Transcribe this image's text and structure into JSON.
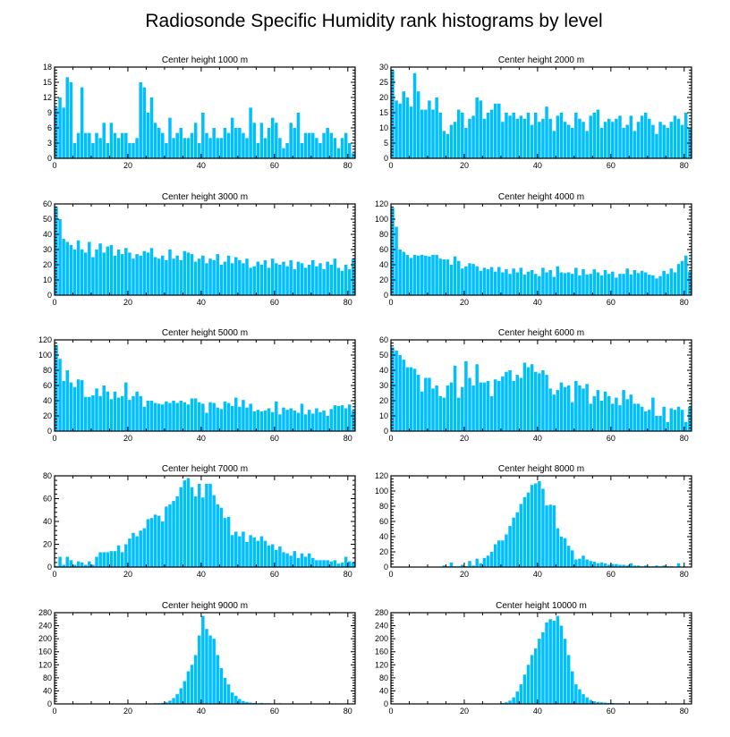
{
  "title": "Radiosonde Specific Humidity rank histograms by level",
  "chart_data": [
    {
      "type": "bar",
      "title": "Center height 1000 m",
      "xlim": [
        0,
        82
      ],
      "ylim": [
        0,
        18
      ],
      "xticks": [
        0,
        20,
        40,
        60,
        80
      ],
      "yticks": [
        0,
        3,
        6,
        9,
        12,
        15,
        18
      ],
      "values": [
        10,
        12,
        10,
        16,
        15,
        3,
        5,
        14,
        5,
        5,
        3,
        5,
        4,
        7,
        3,
        7,
        5,
        4,
        5,
        5,
        3,
        3,
        4,
        15,
        14,
        9,
        12,
        7,
        6,
        5,
        3,
        8,
        4,
        5,
        6,
        4,
        4,
        5,
        7,
        3,
        9,
        5,
        4,
        6,
        4,
        4,
        6,
        5,
        8,
        6,
        6,
        5,
        4,
        10,
        7,
        3,
        7,
        4,
        6,
        8,
        7,
        4,
        2,
        3,
        7,
        6,
        9,
        3,
        5,
        5,
        5,
        4,
        3,
        5,
        6,
        5,
        4,
        2,
        4,
        5,
        3,
        1
      ]
    },
    {
      "type": "bar",
      "title": "Center height 2000 m",
      "xlim": [
        0,
        82
      ],
      "ylim": [
        0,
        30
      ],
      "xticks": [
        0,
        20,
        40,
        60,
        80
      ],
      "yticks": [
        0,
        5,
        10,
        15,
        20,
        25,
        30
      ],
      "values": [
        29,
        19,
        18,
        22,
        20,
        17,
        28,
        22,
        16,
        16,
        19,
        16,
        20,
        15,
        9,
        8,
        11,
        12,
        16,
        15,
        10,
        13,
        14,
        20,
        19,
        13,
        15,
        16,
        18,
        18,
        12,
        15,
        14,
        15,
        13,
        14,
        13,
        15,
        11,
        15,
        12,
        13,
        17,
        13,
        9,
        14,
        15,
        12,
        11,
        10,
        15,
        13,
        12,
        9,
        14,
        15,
        16,
        10,
        12,
        13,
        12,
        13,
        14,
        10,
        11,
        14,
        9,
        12,
        14,
        15,
        13,
        11,
        8,
        12,
        11,
        10,
        12,
        14,
        13,
        11,
        15,
        10
      ]
    },
    {
      "type": "bar",
      "title": "Center height 3000 m",
      "xlim": [
        0,
        82
      ],
      "ylim": [
        0,
        60
      ],
      "xticks": [
        0,
        20,
        40,
        60,
        80
      ],
      "yticks": [
        0,
        10,
        20,
        30,
        40,
        50,
        60
      ],
      "values": [
        58,
        50,
        37,
        35,
        33,
        30,
        36,
        30,
        28,
        35,
        25,
        30,
        34,
        28,
        32,
        33,
        26,
        30,
        27,
        31,
        28,
        24,
        27,
        26,
        29,
        28,
        31,
        25,
        24,
        26,
        23,
        30,
        24,
        26,
        23,
        29,
        28,
        27,
        22,
        24,
        26,
        21,
        24,
        23,
        27,
        20,
        22,
        26,
        21,
        25,
        23,
        21,
        24,
        18,
        19,
        22,
        20,
        23,
        18,
        24,
        21,
        20,
        22,
        19,
        23,
        17,
        22,
        21,
        18,
        20,
        23,
        19,
        21,
        17,
        22,
        20,
        24,
        18,
        16,
        20,
        17,
        24
      ]
    },
    {
      "type": "bar",
      "title": "Center height 4000 m",
      "xlim": [
        0,
        82
      ],
      "ylim": [
        0,
        120
      ],
      "xticks": [
        0,
        20,
        40,
        60,
        80
      ],
      "yticks": [
        0,
        20,
        40,
        60,
        80,
        100,
        120
      ],
      "values": [
        115,
        90,
        60,
        57,
        53,
        49,
        53,
        52,
        53,
        52,
        51,
        53,
        53,
        48,
        47,
        47,
        40,
        51,
        45,
        35,
        38,
        42,
        41,
        38,
        32,
        36,
        34,
        37,
        31,
        37,
        30,
        34,
        28,
        35,
        30,
        36,
        27,
        31,
        33,
        28,
        25,
        36,
        30,
        33,
        24,
        38,
        30,
        29,
        30,
        28,
        36,
        26,
        34,
        27,
        28,
        34,
        30,
        26,
        33,
        28,
        31,
        23,
        28,
        28,
        35,
        27,
        33,
        29,
        32,
        30,
        27,
        26,
        22,
        25,
        32,
        28,
        35,
        30,
        41,
        45,
        52,
        31
      ]
    },
    {
      "type": "bar",
      "title": "Center height 5000 m",
      "xlim": [
        0,
        82
      ],
      "ylim": [
        0,
        120
      ],
      "xticks": [
        0,
        20,
        40,
        60,
        80
      ],
      "yticks": [
        0,
        20,
        40,
        60,
        80,
        100,
        120
      ],
      "values": [
        113,
        95,
        66,
        80,
        64,
        58,
        68,
        67,
        45,
        45,
        47,
        56,
        46,
        60,
        52,
        42,
        52,
        44,
        46,
        64,
        41,
        46,
        52,
        46,
        32,
        40,
        40,
        37,
        36,
        35,
        39,
        37,
        40,
        37,
        40,
        38,
        35,
        43,
        43,
        38,
        36,
        24,
        38,
        37,
        31,
        29,
        39,
        37,
        33,
        44,
        32,
        41,
        31,
        36,
        26,
        28,
        26,
        27,
        30,
        25,
        39,
        22,
        31,
        28,
        30,
        27,
        24,
        36,
        22,
        28,
        23,
        30,
        25,
        27,
        20,
        29,
        34,
        33,
        34,
        30,
        35,
        27
      ]
    },
    {
      "type": "bar",
      "title": "Center height 6000 m",
      "xlim": [
        0,
        82
      ],
      "ylim": [
        0,
        60
      ],
      "xticks": [
        0,
        20,
        40,
        60,
        80
      ],
      "yticks": [
        0,
        10,
        20,
        30,
        40,
        50,
        60
      ],
      "values": [
        55,
        53,
        50,
        47,
        42,
        42,
        41,
        37,
        26,
        35,
        35,
        28,
        30,
        23,
        22,
        30,
        32,
        43,
        22,
        29,
        46,
        35,
        30,
        44,
        32,
        32,
        33,
        23,
        34,
        33,
        36,
        39,
        40,
        33,
        37,
        35,
        45,
        42,
        44,
        39,
        38,
        40,
        37,
        28,
        24,
        27,
        32,
        29,
        30,
        19,
        33,
        30,
        28,
        31,
        18,
        23,
        27,
        20,
        26,
        23,
        18,
        22,
        17,
        27,
        21,
        24,
        18,
        18,
        16,
        13,
        14,
        22,
        10,
        10,
        16,
        6,
        15,
        14,
        16,
        14,
        6,
        16
      ]
    },
    {
      "type": "bar",
      "title": "Center height 7000 m",
      "xlim": [
        0,
        82
      ],
      "ylim": [
        0,
        80
      ],
      "xticks": [
        0,
        20,
        40,
        60,
        80
      ],
      "yticks": [
        0,
        20,
        40,
        60,
        80
      ],
      "values": [
        1,
        9,
        2,
        9,
        6,
        2,
        5,
        4,
        2,
        5,
        2,
        9,
        13,
        13,
        13,
        14,
        14,
        19,
        13,
        20,
        25,
        30,
        27,
        32,
        34,
        42,
        43,
        46,
        45,
        40,
        53,
        55,
        58,
        62,
        70,
        76,
        78,
        70,
        62,
        73,
        61,
        73,
        73,
        63,
        55,
        52,
        43,
        44,
        28,
        31,
        27,
        31,
        22,
        28,
        26,
        23,
        27,
        23,
        19,
        20,
        15,
        18,
        13,
        12,
        10,
        14,
        8,
        12,
        9,
        12,
        8,
        6,
        6,
        6,
        6,
        5,
        6,
        3,
        4,
        9,
        5,
        4
      ]
    },
    {
      "type": "bar",
      "title": "Center height 8000 m",
      "xlim": [
        0,
        82
      ],
      "ylim": [
        0,
        120
      ],
      "xticks": [
        0,
        20,
        40,
        60,
        80
      ],
      "yticks": [
        0,
        20,
        40,
        60,
        80,
        100,
        120
      ],
      "values": [
        0,
        0,
        0,
        0,
        0,
        0,
        0,
        0,
        0,
        0,
        0,
        0,
        0,
        0,
        2,
        1,
        6,
        1,
        1,
        3,
        1,
        8,
        2,
        11,
        5,
        12,
        15,
        20,
        30,
        35,
        35,
        43,
        54,
        65,
        72,
        83,
        92,
        98,
        108,
        110,
        113,
        103,
        81,
        82,
        81,
        51,
        40,
        38,
        28,
        22,
        10,
        11,
        15,
        10,
        8,
        7,
        5,
        6,
        5,
        3,
        4,
        4,
        3,
        3,
        2,
        5,
        2,
        2,
        1,
        2,
        1,
        1,
        2,
        1,
        2,
        1,
        1,
        0,
        5,
        0,
        0,
        0
      ]
    },
    {
      "type": "bar",
      "title": "Center height 9000 m",
      "xlim": [
        0,
        82
      ],
      "ylim": [
        0,
        280
      ],
      "xticks": [
        0,
        20,
        40,
        60,
        80
      ],
      "yticks": [
        0,
        40,
        80,
        120,
        160,
        200,
        240,
        280
      ],
      "values": [
        0,
        0,
        0,
        0,
        0,
        0,
        0,
        0,
        0,
        0,
        0,
        0,
        0,
        0,
        0,
        0,
        0,
        0,
        0,
        0,
        0,
        0,
        0,
        0,
        1,
        1,
        1,
        2,
        2,
        3,
        5,
        10,
        18,
        30,
        48,
        70,
        100,
        120,
        150,
        210,
        270,
        230,
        210,
        200,
        150,
        110,
        80,
        60,
        35,
        25,
        15,
        9,
        6,
        4,
        3,
        2,
        3,
        2,
        2,
        1,
        1,
        2,
        1,
        1,
        1,
        0,
        1,
        1,
        0,
        1,
        1,
        0,
        0,
        1,
        0,
        0,
        0,
        0,
        0,
        0,
        0,
        0
      ]
    },
    {
      "type": "bar",
      "title": "Center height 10000 m",
      "xlim": [
        0,
        82
      ],
      "ylim": [
        0,
        280
      ],
      "xticks": [
        0,
        20,
        40,
        60,
        80
      ],
      "yticks": [
        0,
        40,
        80,
        120,
        160,
        200,
        240,
        280
      ],
      "values": [
        0,
        0,
        0,
        0,
        0,
        0,
        0,
        0,
        0,
        0,
        0,
        0,
        0,
        0,
        0,
        0,
        0,
        0,
        0,
        0,
        0,
        0,
        0,
        0,
        0,
        0,
        0,
        0,
        0,
        1,
        3,
        5,
        10,
        20,
        38,
        60,
        90,
        120,
        150,
        170,
        200,
        220,
        250,
        260,
        255,
        270,
        240,
        200,
        150,
        100,
        60,
        45,
        30,
        20,
        12,
        8,
        6,
        5,
        4,
        3,
        3,
        2,
        2,
        2,
        1,
        1,
        1,
        1,
        1,
        1,
        0,
        0,
        0,
        0,
        0,
        0,
        0,
        0,
        0,
        0,
        0,
        0
      ]
    }
  ]
}
